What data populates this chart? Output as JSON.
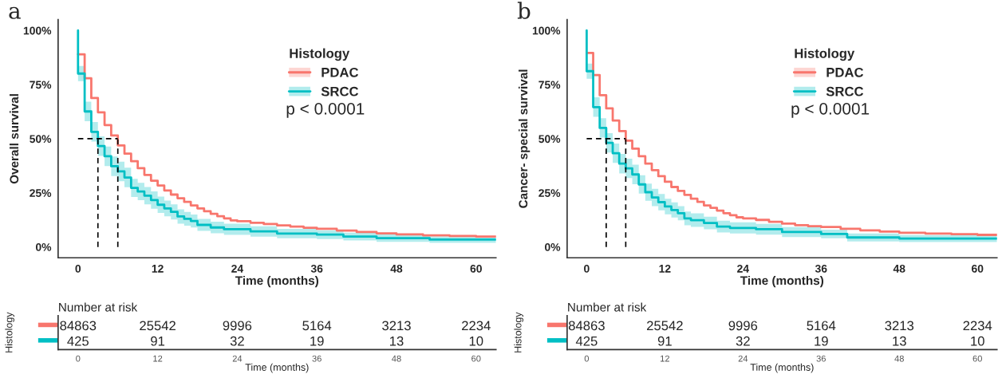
{
  "chart_data": [
    {
      "type": "step",
      "title": "a",
      "xlabel": "Time (months)",
      "ylabel": "Overall survival",
      "legend_title": "Histology",
      "legend": "top right",
      "grid": false,
      "annotations": [
        "p < 0.0001"
      ],
      "xlim": [
        -3,
        63
      ],
      "xticks": [
        0,
        12,
        24,
        36,
        48,
        60
      ],
      "ylim": [
        -5,
        105
      ],
      "yticks": [
        {
          "value": 0,
          "label": "0%"
        },
        {
          "value": 25,
          "label": "25%"
        },
        {
          "value": 50,
          "label": "50%"
        },
        {
          "value": 75,
          "label": "75%"
        },
        {
          "value": 100,
          "label": "100%"
        }
      ],
      "series": [
        {
          "name": "PDAC",
          "color": "#f8766d",
          "x": [
            0,
            1,
            2,
            3,
            4,
            5,
            6,
            7,
            8,
            9,
            10,
            11,
            12,
            13,
            14,
            15,
            16,
            17,
            18,
            19,
            20,
            21,
            22,
            23,
            24,
            26,
            28,
            30,
            32,
            34,
            36,
            39,
            42,
            45,
            48,
            52,
            56,
            60,
            63
          ],
          "values": [
            89.0,
            77.9,
            68.8,
            62.2,
            56.3,
            51.5,
            46.9,
            43.1,
            39.6,
            36.4,
            33.3,
            30.6,
            28.4,
            26.1,
            24.2,
            22.5,
            20.8,
            19.2,
            17.8,
            16.5,
            15.3,
            14.2,
            13.2,
            12.3,
            11.9,
            11.2,
            10.6,
            10.0,
            9.4,
            8.9,
            8.4,
            7.6,
            6.9,
            6.3,
            5.8,
            5.4,
            5.1,
            4.8,
            4.8
          ]
        },
        {
          "name": "SRCC",
          "color": "#00bfc4",
          "x": [
            0,
            0,
            1,
            2,
            3,
            4,
            5,
            6,
            7,
            8,
            9,
            10,
            11,
            12,
            13,
            14,
            15,
            16,
            17,
            18,
            20,
            22,
            26,
            30,
            36,
            40,
            45,
            53,
            63
          ],
          "values": [
            100,
            80.1,
            62.6,
            53.2,
            46.6,
            41.9,
            37.3,
            34.9,
            32.1,
            27.3,
            25.6,
            23.7,
            21.7,
            19.5,
            17.8,
            16.2,
            14.1,
            13.0,
            12.0,
            10.2,
            9.0,
            8.2,
            7.2,
            6.2,
            5.7,
            4.8,
            4.1,
            3.4,
            3.4
          ],
          "lower": [
            100,
            76.6,
            58.1,
            48.7,
            42.1,
            37.4,
            32.8,
            30.4,
            27.6,
            23.1,
            21.6,
            19.7,
            17.7,
            15.7,
            14.2,
            12.7,
            10.8,
            9.8,
            9.0,
            7.4,
            6.3,
            5.6,
            4.8,
            4.0,
            3.7,
            3.0,
            2.4,
            1.9,
            1.9
          ],
          "upper": [
            100,
            83.6,
            67.1,
            57.7,
            51.1,
            46.4,
            41.8,
            39.4,
            36.6,
            31.5,
            29.6,
            27.7,
            25.7,
            23.3,
            21.4,
            19.7,
            17.4,
            16.2,
            15.0,
            13.0,
            11.7,
            10.8,
            9.6,
            8.4,
            7.7,
            6.6,
            5.8,
            4.9,
            4.9
          ]
        },
        {
          "type": "line",
          "color": "#000000",
          "line_style": "dashed",
          "x": [
            0,
            6
          ],
          "values": [
            50,
            50
          ]
        },
        {
          "type": "line",
          "color": "#000000",
          "line_style": "dashed",
          "x": [
            3,
            3
          ],
          "values": [
            0,
            50
          ]
        },
        {
          "type": "line",
          "color": "#000000",
          "line_style": "dashed",
          "x": [
            6,
            6
          ],
          "values": [
            0,
            50
          ]
        }
      ]
    },
    {
      "type": "heatmap",
      "title": "Number at risk",
      "ylabel": "Histology",
      "xlabel": "Time (months)",
      "categories": [
        "0",
        "12",
        "24",
        "36",
        "48",
        "60"
      ],
      "y_categories": [
        null,
        null
      ],
      "colors": [
        "#f8766d",
        "#00bfc4"
      ],
      "data_labels": true,
      "cells": [
        [
          84863,
          25542,
          9996,
          5164,
          3213,
          2234
        ],
        [
          425,
          91,
          32,
          19,
          13,
          10
        ]
      ]
    },
    {
      "type": "step",
      "title": "b",
      "xlabel": "Time (months)",
      "ylabel": "Cancer- special survival",
      "legend_title": "Histology",
      "legend": "top right",
      "grid": false,
      "annotations": [
        "p < 0.0001"
      ],
      "xlim": [
        -3,
        63
      ],
      "xticks": [
        0,
        12,
        24,
        36,
        48,
        60
      ],
      "ylim": [
        -5,
        105
      ],
      "yticks": [
        {
          "value": 0,
          "label": "0%"
        },
        {
          "value": 25,
          "label": "25%"
        },
        {
          "value": 50,
          "label": "50%"
        },
        {
          "value": 75,
          "label": "75%"
        },
        {
          "value": 100,
          "label": "100%"
        }
      ],
      "series": [
        {
          "name": "PDAC",
          "color": "#f8766d",
          "x": [
            0,
            1,
            2,
            3,
            4,
            5,
            6,
            7,
            8,
            9,
            10,
            11,
            12,
            13,
            14,
            15,
            16,
            17,
            18,
            19,
            20,
            21,
            22,
            23,
            24,
            26,
            28,
            30,
            32,
            34,
            36,
            39,
            42,
            45,
            48,
            52,
            56,
            60,
            63
          ],
          "values": [
            89.6,
            79.4,
            70.1,
            64.0,
            58.4,
            53.5,
            49.1,
            45.4,
            41.9,
            38.5,
            35.5,
            32.7,
            30.1,
            27.7,
            25.9,
            24.1,
            22.3,
            20.8,
            19.2,
            18.1,
            16.8,
            15.6,
            14.7,
            13.7,
            13.2,
            12.5,
            11.6,
            10.8,
            10.1,
            9.6,
            9.2,
            8.4,
            7.7,
            7.1,
            6.6,
            6.2,
            5.9,
            5.6,
            5.6
          ]
        },
        {
          "name": "SRCC",
          "color": "#00bfc4",
          "x": [
            0,
            0,
            1,
            2,
            3,
            4,
            5,
            6,
            7,
            8,
            9,
            10,
            11,
            12,
            13,
            14,
            15,
            16,
            18,
            20,
            22,
            26,
            30,
            36,
            40,
            48,
            63
          ],
          "values": [
            100,
            81.2,
            64.6,
            55.0,
            48.1,
            43.3,
            38.5,
            36.3,
            33.5,
            28.9,
            25.3,
            22.9,
            20.7,
            18.7,
            17.1,
            15.6,
            13.2,
            12.4,
            11.1,
            9.4,
            8.8,
            8.2,
            6.9,
            6.0,
            4.4,
            3.9,
            3.9
          ],
          "lower": [
            100,
            77.7,
            60.1,
            50.5,
            43.6,
            38.8,
            34.0,
            31.8,
            29.0,
            24.7,
            21.3,
            18.9,
            16.9,
            15.1,
            13.6,
            12.3,
            10.0,
            9.3,
            8.2,
            6.7,
            6.2,
            5.7,
            4.6,
            4.0,
            2.6,
            2.3,
            2.3
          ],
          "upper": [
            100,
            84.7,
            69.1,
            59.5,
            52.6,
            47.8,
            43.0,
            40.8,
            38.0,
            33.1,
            29.3,
            26.9,
            24.5,
            22.3,
            20.6,
            18.9,
            16.4,
            15.5,
            14.0,
            12.1,
            11.4,
            10.7,
            9.2,
            8.0,
            6.2,
            5.5,
            5.5
          ]
        },
        {
          "type": "line",
          "color": "#000000",
          "line_style": "dashed",
          "x": [
            0,
            6
          ],
          "values": [
            50,
            50
          ]
        },
        {
          "type": "line",
          "color": "#000000",
          "line_style": "dashed",
          "x": [
            3,
            3
          ],
          "values": [
            0,
            50
          ]
        },
        {
          "type": "line",
          "color": "#000000",
          "line_style": "dashed",
          "x": [
            6,
            6
          ],
          "values": [
            0,
            50
          ]
        }
      ]
    },
    {
      "type": "heatmap",
      "title": "Number at risk",
      "ylabel": "Histology",
      "xlabel": "Time (months)",
      "categories": [
        "0",
        "12",
        "24",
        "36",
        "48",
        "60"
      ],
      "y_categories": [
        null,
        null
      ],
      "colors": [
        "#f8766d",
        "#00bfc4"
      ],
      "data_labels": true,
      "cells": [
        [
          84863,
          25542,
          9996,
          5164,
          3213,
          2234
        ],
        [
          425,
          91,
          32,
          19,
          13,
          10
        ]
      ]
    }
  ]
}
